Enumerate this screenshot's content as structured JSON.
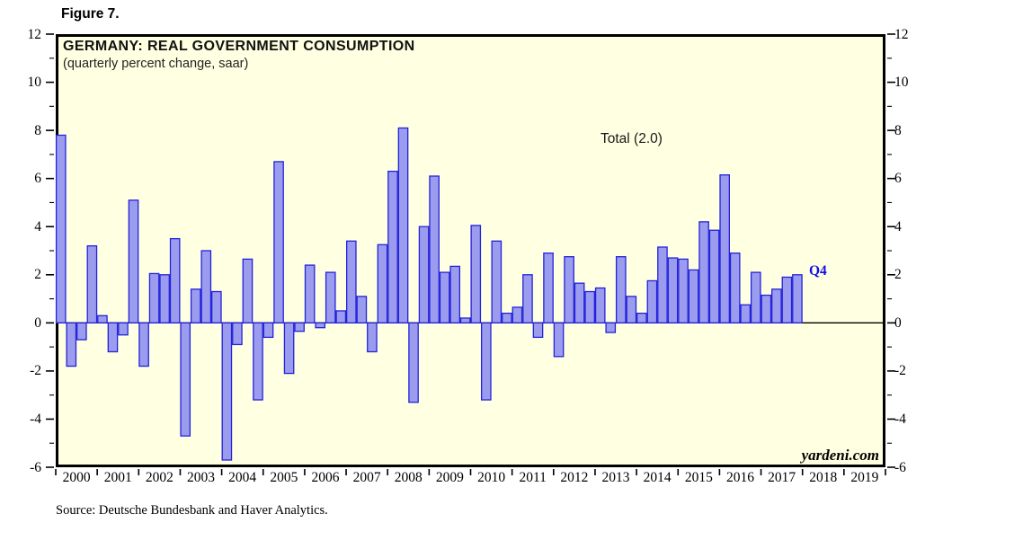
{
  "figure_label": "Figure 7.",
  "watermark": "yardeni.com",
  "source_note": "Source: Deutsche Bundesbank and Haver Analytics.",
  "colors": {
    "plot_background": "#ffffe1",
    "bar_fill": "#9c9cee",
    "bar_border": "#2222dd",
    "axis": "#000000",
    "q4_label": "#0f0fe8"
  },
  "chart_data": {
    "type": "bar",
    "title": "GERMANY: REAL GOVERNMENT CONSUMPTION",
    "subtitle": "(quarterly percent change, saar)",
    "frequency": "quarterly",
    "quarters_per_year": 4,
    "start_period": "2000Q1",
    "end_period": "2017Q4",
    "values": [
      7.8,
      -1.8,
      -0.7,
      3.2,
      0.3,
      -1.2,
      -0.5,
      5.1,
      -1.8,
      2.05,
      2.0,
      3.5,
      -4.7,
      1.4,
      3.0,
      1.3,
      -5.7,
      -0.9,
      2.65,
      -3.2,
      -0.6,
      6.7,
      -2.1,
      -0.35,
      2.4,
      -0.2,
      2.1,
      0.5,
      3.4,
      1.1,
      -1.2,
      3.25,
      6.3,
      8.1,
      -3.3,
      4.0,
      6.1,
      2.1,
      2.35,
      0.2,
      4.05,
      -3.2,
      3.4,
      0.4,
      0.65,
      2.0,
      -0.6,
      2.9,
      -1.4,
      2.75,
      1.65,
      1.3,
      1.45,
      -0.4,
      2.75,
      1.1,
      0.4,
      1.75,
      3.15,
      2.7,
      2.65,
      2.2,
      4.2,
      3.85,
      6.15,
      2.9,
      0.75,
      2.1,
      1.15,
      1.4,
      1.9,
      2.0
    ],
    "x_labels": [
      "2000",
      "2001",
      "2002",
      "2003",
      "2004",
      "2005",
      "2006",
      "2007",
      "2008",
      "2009",
      "2010",
      "2011",
      "2012",
      "2013",
      "2014",
      "2015",
      "2016",
      "2017",
      "2018",
      "2019"
    ],
    "ylim": [
      -6,
      12
    ],
    "ytick_major": 2,
    "ytick_minor": 1,
    "ytick_labels": [
      "12",
      "10",
      "8",
      "6",
      "4",
      "2",
      "0",
      "-2",
      "-4",
      "-6"
    ],
    "grid": false,
    "legend": "none",
    "annotations": [
      {
        "text": "Total (2.0)",
        "note": "total next to latest reading"
      },
      {
        "text": "Q4",
        "note": "marks latest bar 2017Q4"
      }
    ],
    "latest_value": 2.0
  }
}
